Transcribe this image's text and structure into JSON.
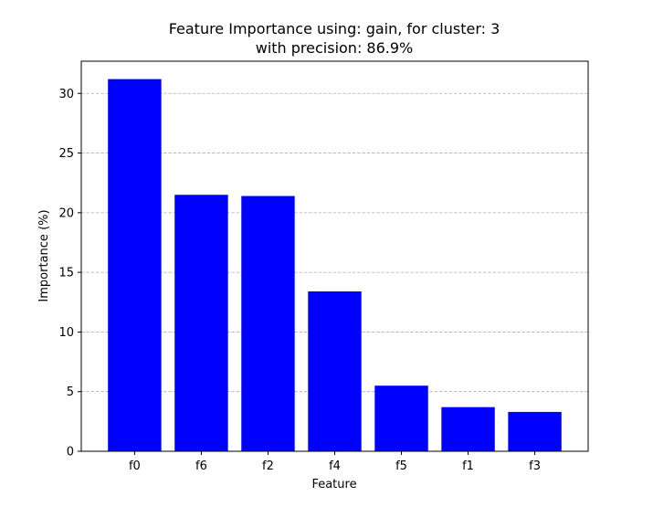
{
  "chart_data": {
    "type": "bar",
    "title": "Feature Importance using: gain, for cluster: 3",
    "subtitle": "with precision: 86.9%",
    "xlabel": "Feature",
    "ylabel": "Importance (%)",
    "categories": [
      "f0",
      "f6",
      "f2",
      "f4",
      "f5",
      "f1",
      "f3"
    ],
    "values": [
      31.2,
      21.5,
      21.4,
      13.4,
      5.5,
      3.7,
      3.3
    ],
    "ylim": [
      0,
      32.7
    ],
    "yticks": [
      0,
      5,
      10,
      15,
      20,
      25,
      30
    ],
    "grid": "horizontal-dashed",
    "legend": "none",
    "bar_color": "#0000ff",
    "grid_color": "#b0b0b0"
  }
}
